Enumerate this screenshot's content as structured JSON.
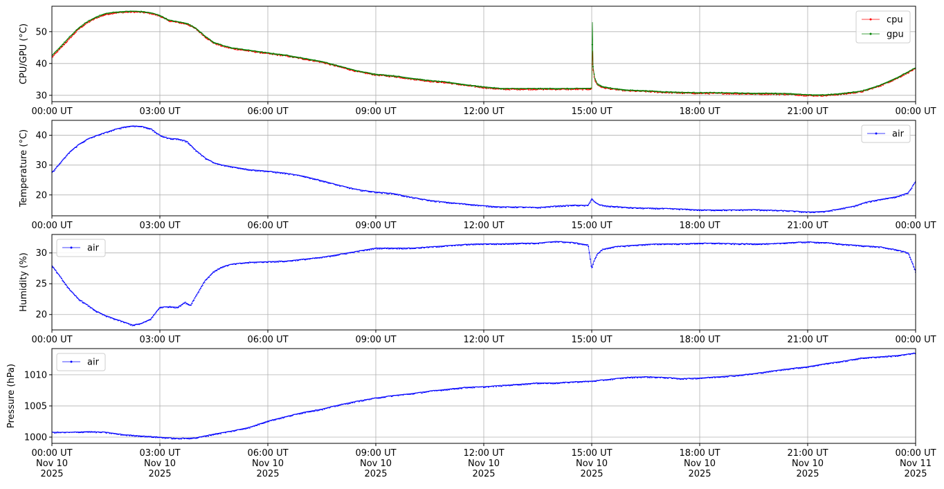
{
  "chart_data": [
    {
      "type": "line",
      "ylabel": "CPU/GPU (°C)",
      "xlim": [
        0,
        24
      ],
      "ylim": [
        28,
        58
      ],
      "yticks": [
        30,
        40,
        50
      ],
      "xtick_labels": [
        "00:00 UT",
        "03:00 UT",
        "06:00 UT",
        "09:00 UT",
        "12:00 UT",
        "15:00 UT",
        "18:00 UT",
        "21:00 UT",
        "00:00 UT"
      ],
      "grid": true,
      "legend": "top-right",
      "series": [
        {
          "name": "cpu",
          "color": "#ff0000",
          "x": [
            0,
            0.25,
            0.5,
            0.75,
            1,
            1.25,
            1.5,
            1.75,
            2,
            2.25,
            2.5,
            2.75,
            3,
            3.25,
            3.5,
            3.75,
            4,
            4.25,
            4.5,
            4.75,
            5,
            5.5,
            6,
            6.5,
            7,
            7.5,
            8,
            8.5,
            9,
            9.5,
            10,
            10.5,
            11,
            11.5,
            12,
            12.5,
            13,
            13.5,
            14,
            14.5,
            15,
            15.02,
            15.04,
            15.08,
            15.15,
            15.3,
            15.6,
            16,
            16.5,
            17,
            17.5,
            18,
            18.5,
            19,
            19.5,
            20,
            20.5,
            21,
            21.5,
            22,
            22.5,
            23,
            23.5,
            24
          ],
          "values": [
            42,
            45,
            48,
            51,
            53,
            54.5,
            55.5,
            56,
            56.2,
            56.3,
            56.2,
            55.8,
            55,
            53.5,
            53,
            52.5,
            51,
            48.5,
            46.5,
            45.5,
            44.8,
            44,
            43.2,
            42.5,
            41.5,
            40.5,
            39,
            37.5,
            36.5,
            36,
            35.2,
            34.5,
            34,
            33.2,
            32.5,
            32,
            32,
            32,
            32,
            32,
            32,
            44,
            38,
            35,
            33.5,
            32.5,
            32,
            31.5,
            31.3,
            31,
            30.8,
            30.7,
            30.7,
            30.6,
            30.5,
            30.5,
            30.4,
            30,
            30,
            30.5,
            31.2,
            33,
            35.5,
            38.5
          ]
        },
        {
          "name": "gpu",
          "color": "#008000",
          "x": [
            0,
            0.25,
            0.5,
            0.75,
            1,
            1.25,
            1.5,
            1.75,
            2,
            2.25,
            2.5,
            2.75,
            3,
            3.25,
            3.5,
            3.75,
            4,
            4.25,
            4.5,
            4.75,
            5,
            5.5,
            6,
            6.5,
            7,
            7.5,
            8,
            8.5,
            9,
            9.5,
            10,
            10.5,
            11,
            11.5,
            12,
            12.5,
            13,
            13.5,
            14,
            14.5,
            15,
            15.02,
            15.04,
            15.08,
            15.15,
            15.3,
            15.6,
            16,
            16.5,
            17,
            17.5,
            18,
            18.5,
            19,
            19.5,
            20,
            20.5,
            21,
            21.5,
            22,
            22.5,
            23,
            23.5,
            24
          ],
          "values": [
            42.5,
            45.5,
            48.5,
            51.3,
            53.3,
            54.8,
            55.8,
            56.2,
            56.4,
            56.5,
            56.4,
            56,
            55.2,
            53.7,
            53.2,
            52.7,
            51.2,
            48.7,
            46.7,
            45.7,
            45,
            44.2,
            43.4,
            42.7,
            41.7,
            40.7,
            39.2,
            37.7,
            36.7,
            36.2,
            35.4,
            34.7,
            34.2,
            33.4,
            32.7,
            32.2,
            32.2,
            32.2,
            32.2,
            32.2,
            32.3,
            53,
            39,
            35.5,
            33.8,
            32.8,
            32.2,
            31.7,
            31.5,
            31.2,
            31,
            30.9,
            30.9,
            30.8,
            30.7,
            30.7,
            30.6,
            30.2,
            30.2,
            30.7,
            31.4,
            33.2,
            35.7,
            38.7
          ]
        }
      ]
    },
    {
      "type": "line",
      "ylabel": "Temperature (°C)",
      "xlim": [
        0,
        24
      ],
      "ylim": [
        13,
        45
      ],
      "yticks": [
        20,
        30,
        40
      ],
      "xtick_labels": [
        "00:00 UT",
        "03:00 UT",
        "06:00 UT",
        "09:00 UT",
        "12:00 UT",
        "15:00 UT",
        "18:00 UT",
        "21:00 UT",
        "00:00 UT"
      ],
      "grid": true,
      "legend": "top-right",
      "series": [
        {
          "name": "air",
          "color": "#0000ff",
          "x": [
            0,
            0.25,
            0.5,
            0.75,
            1,
            1.25,
            1.5,
            1.75,
            2,
            2.25,
            2.5,
            2.75,
            3,
            3.25,
            3.5,
            3.75,
            4,
            4.25,
            4.5,
            4.75,
            5,
            5.5,
            6,
            6.5,
            7,
            7.5,
            8,
            8.5,
            9,
            9.5,
            10,
            10.5,
            11,
            11.5,
            12,
            12.5,
            13,
            13.5,
            14,
            14.5,
            14.9,
            15,
            15.1,
            15.2,
            15.4,
            15.7,
            16,
            16.5,
            17,
            17.5,
            18,
            18.5,
            19,
            19.5,
            20,
            20.5,
            21,
            21.5,
            22,
            22.3,
            22.6,
            23,
            23.5,
            23.8,
            24
          ],
          "values": [
            27.5,
            31,
            34.5,
            37,
            38.8,
            40,
            41,
            42,
            42.8,
            43.2,
            43,
            42.2,
            40,
            39,
            38.8,
            38,
            35,
            32.5,
            30.8,
            30,
            29.5,
            28.5,
            28,
            27.3,
            26.3,
            24.8,
            23.2,
            21.8,
            21,
            20.5,
            19.2,
            18.2,
            17.5,
            17,
            16.4,
            16,
            16,
            15.8,
            16.3,
            16.6,
            16.5,
            18.8,
            17.5,
            16.8,
            16.3,
            16.1,
            15.8,
            15.6,
            15.5,
            15.3,
            15,
            15,
            15,
            15.1,
            14.9,
            14.7,
            14.3,
            14.5,
            15.6,
            16.3,
            17.5,
            18.5,
            19.5,
            20.8,
            24.5
          ]
        }
      ]
    },
    {
      "type": "line",
      "ylabel": "Humidity (%)",
      "xlim": [
        0,
        24
      ],
      "ylim": [
        17.5,
        33
      ],
      "yticks": [
        20,
        25,
        30
      ],
      "xtick_labels": [
        "00:00 UT",
        "03:00 UT",
        "06:00 UT",
        "09:00 UT",
        "12:00 UT",
        "15:00 UT",
        "18:00 UT",
        "21:00 UT",
        "00:00 UT"
      ],
      "grid": true,
      "legend": "top-left",
      "series": [
        {
          "name": "air",
          "color": "#0000ff",
          "x": [
            0,
            0.25,
            0.5,
            0.75,
            1,
            1.25,
            1.5,
            1.75,
            2,
            2.25,
            2.5,
            2.75,
            3,
            3.25,
            3.5,
            3.7,
            3.85,
            4,
            4.25,
            4.5,
            4.75,
            5,
            5.5,
            6,
            6.5,
            7,
            7.5,
            8,
            8.5,
            9,
            9.5,
            10,
            10.5,
            11,
            11.5,
            12,
            12.5,
            13,
            13.5,
            14,
            14.5,
            14.9,
            15,
            15.05,
            15.15,
            15.3,
            15.6,
            16,
            16.5,
            17,
            17.5,
            18,
            18.5,
            19,
            19.5,
            20,
            20.5,
            21,
            21.5,
            22,
            22.5,
            23,
            23.5,
            23.8,
            24
          ],
          "values": [
            28,
            26,
            24,
            22.5,
            21.5,
            20.5,
            19.8,
            19.3,
            18.8,
            18.3,
            18.6,
            19.3,
            21.2,
            21.3,
            21.2,
            22,
            21.5,
            23,
            25.5,
            27,
            27.8,
            28.2,
            28.5,
            28.6,
            28.7,
            29,
            29.3,
            29.8,
            30.3,
            30.8,
            30.8,
            30.8,
            31,
            31.2,
            31.4,
            31.5,
            31.5,
            31.6,
            31.6,
            31.9,
            31.7,
            31.3,
            27.5,
            28.5,
            29.8,
            30.6,
            31,
            31.2,
            31.4,
            31.5,
            31.5,
            31.6,
            31.6,
            31.5,
            31.5,
            31.5,
            31.7,
            31.8,
            31.7,
            31.4,
            31.2,
            31,
            30.5,
            30,
            27
          ]
        }
      ]
    },
    {
      "type": "line",
      "ylabel": "Pressure (hPa)",
      "xlim": [
        0,
        24
      ],
      "ylim": [
        999,
        1014.2
      ],
      "yticks": [
        1000,
        1005,
        1010
      ],
      "xtick_labels": [
        "00:00 UT\nNov 10\n2025",
        "03:00 UT\nNov 10\n2025",
        "06:00 UT\nNov 10\n2025",
        "09:00 UT\nNov 10\n2025",
        "12:00 UT\nNov 10\n2025",
        "15:00 UT\nNov 10\n2025",
        "18:00 UT\nNov 10\n2025",
        "21:00 UT\nNov 10\n2025",
        "00:00 UT\nNov 11\n2025"
      ],
      "grid": true,
      "legend": "top-left",
      "series": [
        {
          "name": "air",
          "color": "#0000ff",
          "x": [
            0,
            0.5,
            1,
            1.5,
            2,
            2.5,
            3,
            3.5,
            4,
            4.5,
            5,
            5.5,
            6,
            6.5,
            7,
            7.5,
            8,
            8.5,
            9,
            9.5,
            10,
            10.5,
            11,
            11.5,
            12,
            12.5,
            13,
            13.5,
            14,
            14.5,
            15,
            15.5,
            16,
            16.5,
            17,
            17.5,
            18,
            18.5,
            19,
            19.5,
            20,
            20.5,
            21,
            21.5,
            22,
            22.5,
            23,
            23.5,
            24
          ],
          "values": [
            1000.8,
            1000.8,
            1000.9,
            1000.8,
            1000.4,
            1000.2,
            1000,
            999.8,
            999.9,
            1000.5,
            1001,
            1001.6,
            1002.6,
            1003.3,
            1004,
            1004.5,
            1005.2,
            1005.8,
            1006.3,
            1006.7,
            1007,
            1007.4,
            1007.7,
            1008,
            1008.1,
            1008.3,
            1008.5,
            1008.7,
            1008.7,
            1008.9,
            1009,
            1009.3,
            1009.6,
            1009.7,
            1009.6,
            1009.4,
            1009.5,
            1009.7,
            1009.9,
            1010.2,
            1010.6,
            1011,
            1011.3,
            1011.8,
            1012.2,
            1012.7,
            1012.9,
            1013.1,
            1013.5
          ]
        }
      ]
    }
  ]
}
